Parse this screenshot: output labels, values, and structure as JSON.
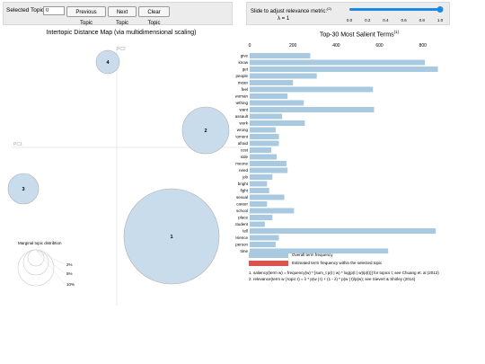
{
  "topic_panel": {
    "label": "Selected Topic:",
    "value": "0",
    "prev_label": "Previous Topic",
    "next_label": "Next Topic",
    "clear_label": "Clear Topic"
  },
  "slider_panel": {
    "label": "Slide to adjust relevance metric:",
    "footnote_mark": "(2)",
    "lambda_text": "λ = 1",
    "value": 1.0,
    "ticks": [
      "0.0",
      "0.2",
      "0.4",
      "0.6",
      "0.8",
      "1.0"
    ]
  },
  "intertopic": {
    "title": "Intertopic Distance Map (via multidimensional scaling)",
    "pc1": "PC1",
    "pc2": "PC2",
    "topics": [
      {
        "label": "1"
      },
      {
        "label": "2"
      },
      {
        "label": "3"
      },
      {
        "label": "4"
      }
    ],
    "marginal": {
      "title": "Marginal topic distribtion",
      "labels": [
        "2%",
        "5%",
        "10%"
      ]
    }
  },
  "chart_data": {
    "type": "bar",
    "title": "Top-30 Most Salient Terms",
    "footnote_mark": "(1)",
    "xlim": [
      0,
      880
    ],
    "xticks": [
      "0",
      "200",
      "400",
      "600",
      "800"
    ],
    "categories": [
      "give",
      "know",
      "get",
      "people",
      "mean",
      "feel",
      "woman",
      "something",
      "want",
      "assault",
      "work",
      "wrong",
      "moment",
      "afraid",
      "cost",
      "side",
      "someone",
      "need",
      "job",
      "bright",
      "fight",
      "sexual",
      "career",
      "school",
      "place",
      "student",
      "tell",
      "experience",
      "person",
      "time"
    ],
    "values": [
      280,
      810,
      870,
      310,
      200,
      570,
      175,
      250,
      575,
      150,
      255,
      120,
      135,
      135,
      100,
      125,
      170,
      175,
      105,
      80,
      90,
      160,
      80,
      205,
      105,
      70,
      860,
      135,
      120,
      640
    ],
    "legend": [
      "Overall term frequency",
      "Estimated term frequency within the selected topic"
    ],
    "colors": {
      "overall": "#a9c9e0",
      "estimated": "#d9534f"
    },
    "notes": [
      "1. saliency(term w) = frequency(w) * [sum_t p(t | w) * log(p(t | w)/p(t))] for topics t; see Chuang et. al (2012)",
      "2. relevance(term w | topic t) = λ * p(w | t) + (1 - λ) * p(w | t)/p(w); see Sievert & Shirley (2014)"
    ]
  },
  "colors": {
    "bubble_fill": "#c9dcec",
    "bubble_stroke": "#b0b0b0",
    "slider": "#1e88e5"
  }
}
